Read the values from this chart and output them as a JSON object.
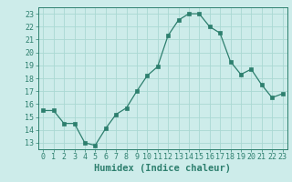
{
  "xlabel": "Humidex (Indice chaleur)",
  "x": [
    0,
    1,
    2,
    3,
    4,
    5,
    6,
    7,
    8,
    9,
    10,
    11,
    12,
    13,
    14,
    15,
    16,
    17,
    18,
    19,
    20,
    21,
    22,
    23
  ],
  "y": [
    15.5,
    15.5,
    14.5,
    14.5,
    13.0,
    12.8,
    14.1,
    15.2,
    15.7,
    17.0,
    18.2,
    18.9,
    21.3,
    22.5,
    23.0,
    23.0,
    22.0,
    21.5,
    19.3,
    18.3,
    18.7,
    17.5,
    16.5,
    16.8
  ],
  "ylim": [
    12.5,
    23.5
  ],
  "xlim": [
    -0.5,
    23.5
  ],
  "yticks": [
    13,
    14,
    15,
    16,
    17,
    18,
    19,
    20,
    21,
    22,
    23
  ],
  "xticks": [
    0,
    1,
    2,
    3,
    4,
    5,
    6,
    7,
    8,
    9,
    10,
    11,
    12,
    13,
    14,
    15,
    16,
    17,
    18,
    19,
    20,
    21,
    22,
    23
  ],
  "line_color": "#2d7f6e",
  "marker": "s",
  "marker_size": 2.2,
  "bg_color": "#cdecea",
  "grid_color": "#aad8d3",
  "tick_label_fontsize": 6.0,
  "xlabel_fontsize": 7.5,
  "xlabel_color": "#2d7f6e",
  "spine_color": "#2d7f6e"
}
